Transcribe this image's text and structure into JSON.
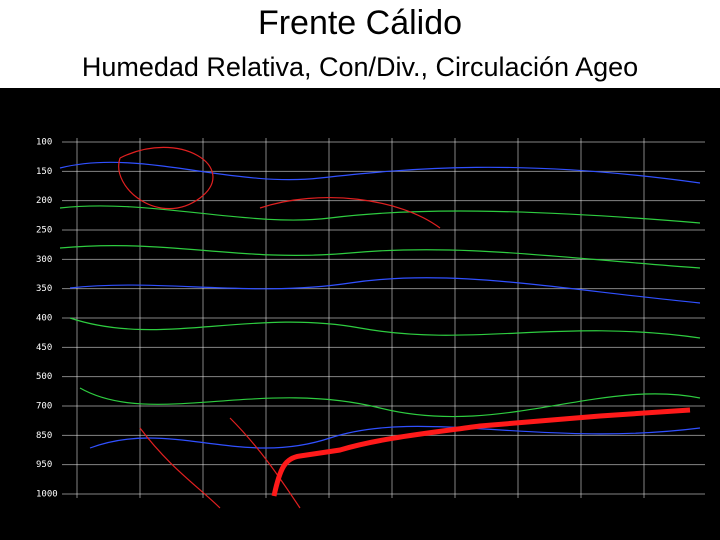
{
  "header": {
    "title": "Frente Cálido",
    "subtitle": "Humedad Relativa, Con/Div., Circulación Ageo"
  },
  "figure": {
    "pressure_labels": [
      "100",
      "150",
      "200",
      "250",
      "300",
      "350",
      "400",
      "450",
      "500",
      "700",
      "850",
      "950",
      "1000"
    ]
  }
}
